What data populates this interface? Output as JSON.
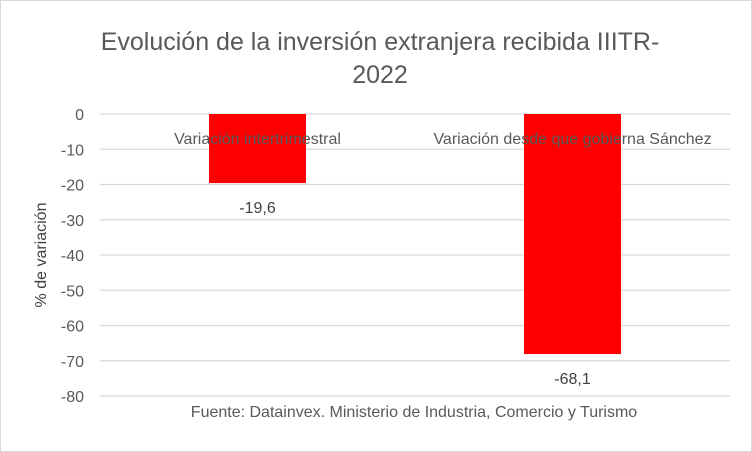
{
  "chart_data": {
    "type": "bar",
    "title_lines": [
      "Evolución de la inversión extranjera recibida IIITR-",
      "2022"
    ],
    "categories": [
      "Variación intertrimestral",
      "Variación desde que gobierna Sánchez"
    ],
    "values": [
      -19.6,
      -68.1
    ],
    "data_labels": [
      "-19,6",
      "-68,1"
    ],
    "ylabel": "% de variación",
    "xlabel": "",
    "ylim": [
      -80,
      0
    ],
    "yticks": [
      0,
      -10,
      -20,
      -30,
      -40,
      -50,
      -60,
      -70,
      -80
    ],
    "grid": true,
    "legend": "none",
    "bar_color": "#FF0000",
    "source": "Fuente: Datainvex. Ministerio de Industria, Comercio y Turismo"
  }
}
